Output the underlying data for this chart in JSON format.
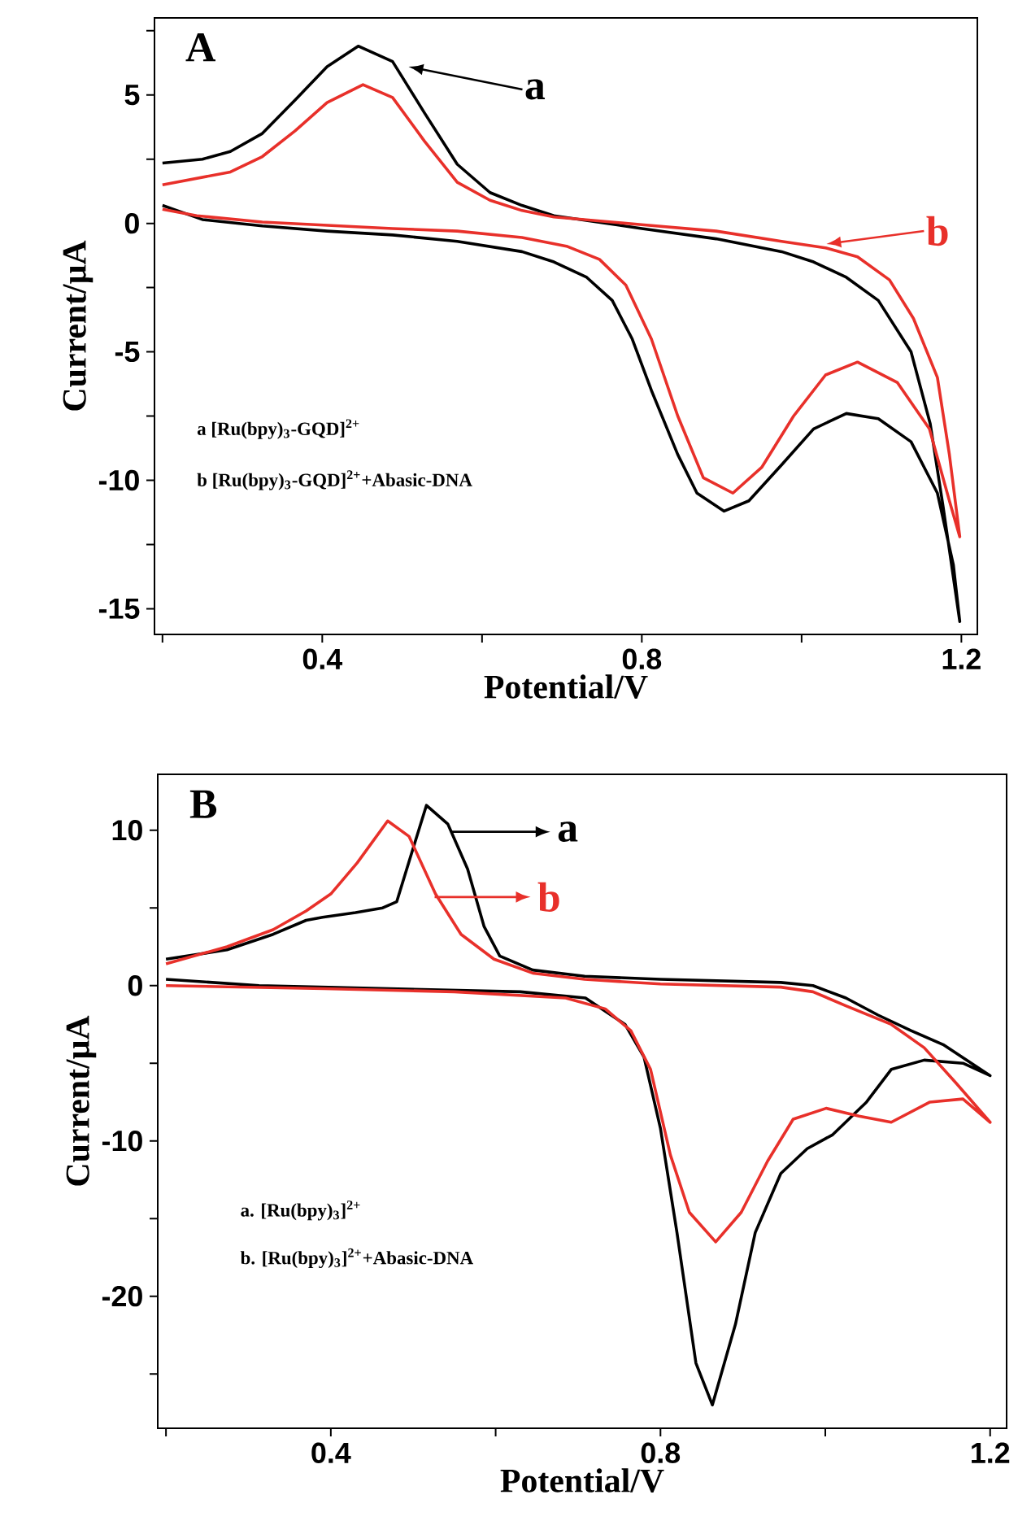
{
  "chart_data": [
    {
      "type": "line",
      "title": "A",
      "xlabel": "Potential/V",
      "ylabel": "Current/μA",
      "xlim": [
        0.19,
        1.22
      ],
      "ylim": [
        -16,
        8
      ],
      "xticks": [
        {
          "value": 0.2,
          "label": null
        },
        0.4,
        {
          "value": 0.6,
          "label": null
        },
        0.8,
        {
          "value": 1.0,
          "label": null
        },
        1.2
      ],
      "yticks": [
        -15,
        {
          "value": -12.5,
          "label": null
        },
        -10,
        {
          "value": -7.5,
          "label": null
        },
        -5,
        {
          "value": -2.5,
          "label": null
        },
        0,
        {
          "value": 2.5,
          "label": null
        },
        5,
        {
          "value": 7.5,
          "label": null
        }
      ],
      "series": [
        {
          "color": "#000000",
          "x": [
            0.2,
            0.25,
            0.285,
            0.325,
            0.366,
            0.406,
            0.445,
            0.488,
            0.528,
            0.569,
            0.61,
            0.65,
            0.69,
            0.8,
            0.893,
            0.975,
            1.015,
            1.056,
            1.096,
            1.137,
            1.161,
            1.177,
            1.198,
            1.19,
            1.17,
            1.137,
            1.096,
            1.056,
            1.015,
            0.975,
            0.934,
            0.903,
            0.869,
            0.845,
            0.812,
            0.788,
            0.763,
            0.731,
            0.69,
            0.65,
            0.569,
            0.488,
            0.406,
            0.325,
            0.25,
            0.2
          ],
          "values": [
            2.35,
            2.5,
            2.8,
            3.5,
            4.8,
            6.1,
            6.9,
            6.3,
            4.3,
            2.3,
            1.2,
            0.7,
            0.3,
            -0.2,
            -0.6,
            -1.1,
            -1.5,
            -2.1,
            -3.0,
            -5.0,
            -7.8,
            -11,
            -15.5,
            -13.3,
            -10.5,
            -8.5,
            -7.6,
            -7.4,
            -8.0,
            -9.4,
            -10.8,
            -11.2,
            -10.5,
            -9.0,
            -6.5,
            -4.5,
            -3.0,
            -2.1,
            -1.5,
            -1.1,
            -0.7,
            -0.45,
            -0.3,
            -0.1,
            0.15,
            0.7
          ]
        },
        {
          "color": "#e8302a",
          "x": [
            0.2,
            0.285,
            0.325,
            0.366,
            0.406,
            0.451,
            0.488,
            0.528,
            0.569,
            0.61,
            0.65,
            0.69,
            0.8,
            0.893,
            0.975,
            1.03,
            1.07,
            1.11,
            1.14,
            1.17,
            1.185,
            1.198,
            1.185,
            1.16,
            1.12,
            1.07,
            1.03,
            0.99,
            0.95,
            0.914,
            0.877,
            0.845,
            0.812,
            0.78,
            0.747,
            0.707,
            0.65,
            0.569,
            0.488,
            0.325,
            0.243,
            0.2
          ],
          "values": [
            1.5,
            2.0,
            2.6,
            3.6,
            4.7,
            5.4,
            4.9,
            3.2,
            1.6,
            0.9,
            0.5,
            0.25,
            -0.05,
            -0.3,
            -0.7,
            -0.95,
            -1.3,
            -2.2,
            -3.7,
            -6.0,
            -9.0,
            -12.2,
            -10.8,
            -8.0,
            -6.2,
            -5.4,
            -5.9,
            -7.5,
            -9.5,
            -10.5,
            -9.9,
            -7.5,
            -4.5,
            -2.4,
            -1.4,
            -0.9,
            -0.55,
            -0.3,
            -0.2,
            0.05,
            0.3,
            0.55
          ]
        }
      ],
      "annotations": [
        {
          "text": "a",
          "x": 0.504,
          "y": 6.1
        },
        {
          "text": "b",
          "x": 1.027,
          "y": -0.8
        },
        "a [Ru(bpy)$_{3}$-GQD]$^{2+}$",
        "b [Ru(bpy)$_{3}$-GQD]$^{2+}$+Abasic-DNA"
      ]
    },
    {
      "type": "line",
      "title": "B",
      "xlabel": "Potential/V",
      "ylabel": "Current/μA",
      "xlim": [
        0.19,
        1.22
      ],
      "ylim": [
        -28.5,
        13.6
      ],
      "xticks": [
        {
          "value": 0.2,
          "label": null
        },
        0.4,
        {
          "value": 0.6,
          "label": null
        },
        0.8,
        {
          "value": 1.0,
          "label": null
        },
        1.2
      ],
      "yticks": [
        {
          "value": -25,
          "label": null
        },
        -20,
        {
          "value": -15,
          "label": null
        },
        -10,
        {
          "value": -5,
          "label": null
        },
        0,
        {
          "value": 5,
          "label": null
        },
        10
      ],
      "series": [
        {
          "color": "#000000",
          "x": [
            0.2,
            0.274,
            0.33,
            0.37,
            0.39,
            0.43,
            0.463,
            0.48,
            0.495,
            0.516,
            0.542,
            0.566,
            0.586,
            0.605,
            0.645,
            0.708,
            0.8,
            0.946,
            0.985,
            1.025,
            1.064,
            1.104,
            1.143,
            1.2,
            1.167,
            1.12,
            1.08,
            1.05,
            1.009,
            0.978,
            0.946,
            0.915,
            0.891,
            0.863,
            0.843,
            0.82,
            0.8,
            0.78,
            0.757,
            0.709,
            0.63,
            0.471,
            0.313,
            0.2
          ],
          "values": [
            1.7,
            2.3,
            3.3,
            4.2,
            4.4,
            4.7,
            5.0,
            5.4,
            8.0,
            11.6,
            10.4,
            7.5,
            3.8,
            1.9,
            1.0,
            0.6,
            0.4,
            0.2,
            0,
            -0.8,
            -1.9,
            -2.9,
            -3.8,
            -5.8,
            -5.0,
            -4.8,
            -5.4,
            -7.5,
            -9.6,
            -10.5,
            -12.1,
            -15.9,
            -21.8,
            -27.0,
            -24.3,
            -15.9,
            -9.2,
            -4.6,
            -2.5,
            -0.8,
            -0.4,
            -0.2,
            0,
            0.4
          ]
        },
        {
          "color": "#e8302a",
          "x": [
            0.2,
            0.274,
            0.33,
            0.37,
            0.4,
            0.432,
            0.469,
            0.495,
            0.527,
            0.558,
            0.598,
            0.645,
            0.708,
            0.8,
            0.946,
            0.985,
            1.025,
            1.08,
            1.12,
            1.159,
            1.2,
            1.167,
            1.127,
            1.08,
            1.041,
            1.001,
            0.961,
            0.93,
            0.898,
            0.867,
            0.835,
            0.812,
            0.788,
            0.764,
            0.733,
            0.685,
            0.55,
            0.392,
            0.2
          ],
          "values": [
            1.4,
            2.5,
            3.6,
            4.8,
            5.9,
            7.9,
            10.6,
            9.6,
            5.9,
            3.3,
            1.7,
            0.8,
            0.4,
            0.1,
            -0.1,
            -0.4,
            -1.3,
            -2.5,
            -4.0,
            -6.3,
            -8.8,
            -7.3,
            -7.5,
            -8.8,
            -8.4,
            -7.9,
            -8.6,
            -11.3,
            -14.6,
            -16.5,
            -14.6,
            -10.9,
            -5.4,
            -2.9,
            -1.5,
            -0.8,
            -0.4,
            -0.2,
            0
          ]
        }
      ],
      "annotations": [
        {
          "text": "a",
          "x": 0.542,
          "y": 9.9
        },
        {
          "text": "b",
          "x": 0.522,
          "y": 5.7
        },
        "a. [Ru(bpy)$_{3}$]$^{2+}$",
        "b. [Ru(bpy)$_{3}$]$^{2+}$+Abasic-DNA"
      ]
    }
  ]
}
